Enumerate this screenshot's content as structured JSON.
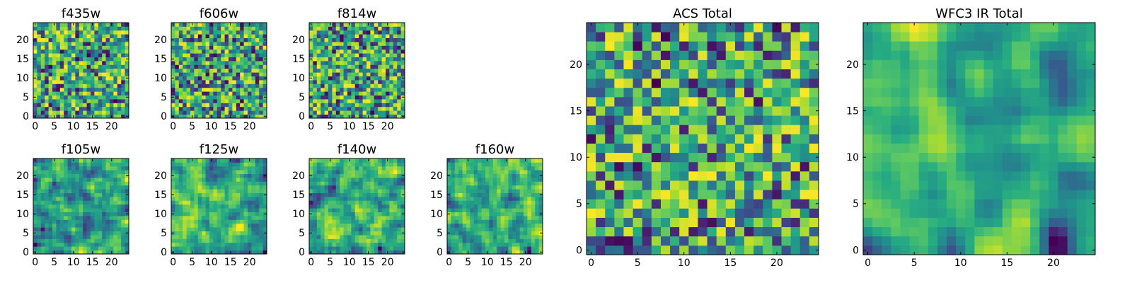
{
  "chart_data": [
    {
      "type": "heatmap",
      "title": "f435w",
      "x_ticks": [
        "0",
        "5",
        "10",
        "15",
        "20"
      ],
      "y_ticks": [
        "0",
        "5",
        "10",
        "15",
        "20"
      ],
      "xlim": [
        -0.5,
        24.5
      ],
      "ylim": [
        -0.5,
        24.5
      ],
      "colormap": "viridis",
      "seed": 11,
      "smooth": 0,
      "grid": 25
    },
    {
      "type": "heatmap",
      "title": "f606w",
      "x_ticks": [
        "0",
        "5",
        "10",
        "15",
        "20"
      ],
      "y_ticks": [
        "0",
        "5",
        "10",
        "15",
        "20"
      ],
      "xlim": [
        -0.5,
        24.5
      ],
      "ylim": [
        -0.5,
        24.5
      ],
      "colormap": "viridis",
      "seed": 23,
      "smooth": 0,
      "grid": 25
    },
    {
      "type": "heatmap",
      "title": "f814w",
      "x_ticks": [
        "0",
        "5",
        "10",
        "15",
        "20"
      ],
      "y_ticks": [
        "0",
        "5",
        "10",
        "15",
        "20"
      ],
      "xlim": [
        -0.5,
        24.5
      ],
      "ylim": [
        -0.5,
        24.5
      ],
      "colormap": "viridis",
      "seed": 37,
      "smooth": 0,
      "grid": 25
    },
    {
      "type": "heatmap",
      "title": "f105w",
      "x_ticks": [
        "0",
        "5",
        "10",
        "15",
        "20"
      ],
      "y_ticks": [
        "0",
        "5",
        "10",
        "15",
        "20"
      ],
      "xlim": [
        -0.5,
        24.5
      ],
      "ylim": [
        -0.5,
        24.5
      ],
      "colormap": "viridis",
      "seed": 41,
      "smooth": 1,
      "grid": 25
    },
    {
      "type": "heatmap",
      "title": "f125w",
      "x_ticks": [
        "0",
        "5",
        "10",
        "15",
        "20"
      ],
      "y_ticks": [
        "0",
        "5",
        "10",
        "15",
        "20"
      ],
      "xlim": [
        -0.5,
        24.5
      ],
      "ylim": [
        -0.5,
        24.5
      ],
      "colormap": "viridis",
      "seed": 53,
      "smooth": 1,
      "grid": 25
    },
    {
      "type": "heatmap",
      "title": "f140w",
      "x_ticks": [
        "0",
        "5",
        "10",
        "15",
        "20"
      ],
      "y_ticks": [
        "0",
        "5",
        "10",
        "15",
        "20"
      ],
      "xlim": [
        -0.5,
        24.5
      ],
      "ylim": [
        -0.5,
        24.5
      ],
      "colormap": "viridis",
      "seed": 67,
      "smooth": 1,
      "grid": 25
    },
    {
      "type": "heatmap",
      "title": "f160w",
      "x_ticks": [
        "0",
        "5",
        "10",
        "15",
        "20"
      ],
      "y_ticks": [
        "0",
        "5",
        "10",
        "15",
        "20"
      ],
      "xlim": [
        -0.5,
        24.5
      ],
      "ylim": [
        -0.5,
        24.5
      ],
      "colormap": "viridis",
      "seed": 79,
      "smooth": 1,
      "grid": 25
    },
    {
      "type": "heatmap",
      "title": "ACS Total",
      "x_ticks": [
        "0",
        "5",
        "10",
        "15",
        "20"
      ],
      "y_ticks": [
        "0",
        "5",
        "10",
        "15",
        "20"
      ],
      "xlim": [
        -0.5,
        24.5
      ],
      "ylim": [
        -0.5,
        24.5
      ],
      "colormap": "viridis",
      "seed": 97,
      "smooth": 0,
      "grid": 25
    },
    {
      "type": "heatmap",
      "title": "WFC3 IR Total",
      "x_ticks": [
        "0",
        "5",
        "10",
        "15",
        "20"
      ],
      "y_ticks": [
        "0",
        "5",
        "10",
        "15",
        "20"
      ],
      "xlim": [
        -0.5,
        24.5
      ],
      "ylim": [
        -0.5,
        24.5
      ],
      "colormap": "viridis",
      "seed": 131,
      "smooth": 2,
      "grid": 25
    }
  ],
  "colors": {
    "viridis_dark": "#440154",
    "viridis_blue": "#31688e",
    "viridis_teal": "#21918c",
    "viridis_green": "#35b779",
    "viridis_yellow": "#fde725",
    "axes_frame": "#000000"
  }
}
